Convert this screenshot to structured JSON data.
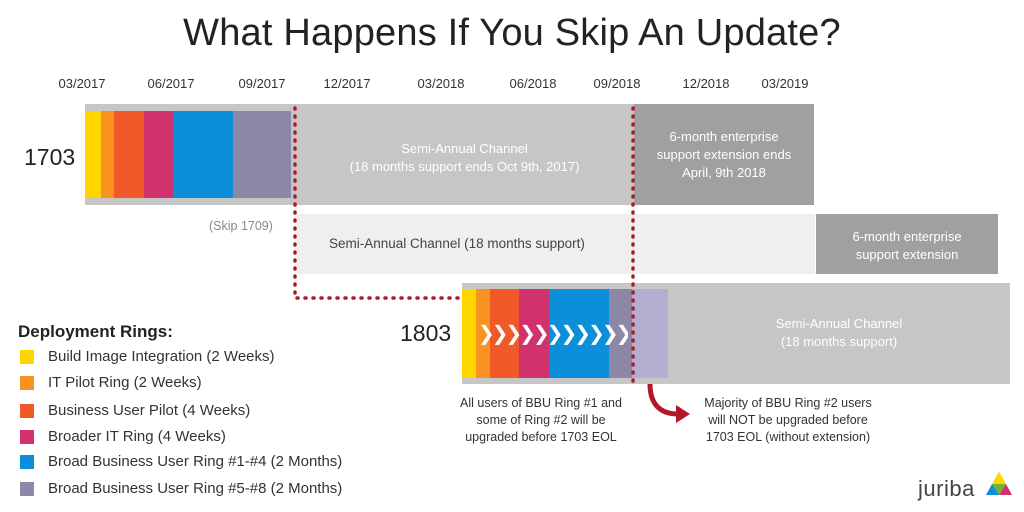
{
  "title": "What Happens If You Skip An Update?",
  "timeline": {
    "ticks": [
      "03/2017",
      "06/2017",
      "09/2017",
      "12/2017",
      "03/2018",
      "06/2018",
      "09/2018",
      "12/2018",
      "03/2019"
    ]
  },
  "releases": {
    "r1703": {
      "label": "1703",
      "sac_text": [
        "Semi-Annual Channel",
        "(18 months support ends Oct 9th, 2017)"
      ],
      "ext_text": [
        "6-month enterprise",
        "support extension ends",
        "April, 9th 2018"
      ]
    },
    "r1709": {
      "skip_label": "(Skip 1709)",
      "sac_text": "Semi-Annual Channel (18 months support)",
      "ext_text": [
        "6-month enterprise",
        "support extension"
      ]
    },
    "r1803": {
      "label": "1803",
      "sac_text": [
        "Semi-Annual Channel",
        "(18 months support)"
      ]
    }
  },
  "legend": {
    "title": "Deployment Rings:",
    "items": [
      {
        "label": "Build Image Integration (2 Weeks)",
        "color": "#FFD500"
      },
      {
        "label": "IT Pilot Ring (2 Weeks)",
        "color": "#F7931E"
      },
      {
        "label": "Business User Pilot (4 Weeks)",
        "color": "#F05A28"
      },
      {
        "label": "Broader IT Ring (4 Weeks)",
        "color": "#D0326E"
      },
      {
        "label": "Broad Business User Ring #1-#4 (2 Months)",
        "color": "#0B8FD9"
      },
      {
        "label": "Broad Business User Ring #5-#8 (2 Months)",
        "color": "#8E88A8"
      }
    ]
  },
  "notes": {
    "left": [
      "All users of BBU Ring #1 and",
      "some of Ring #2 will be",
      "upgraded  before  1703 EOL"
    ],
    "right": [
      "Majority of BBU Ring #2 users",
      "will NOT be upgraded before",
      "1703 EOL (without extension)"
    ]
  },
  "colors": {
    "sac_grey": "#C6C6C6",
    "ext_grey": "#A0A0A0",
    "light_grey": "#EFEFEF",
    "dotted_red": "#B0192A",
    "light_purple": "#B3AECF"
  },
  "logo": {
    "text": "juriba"
  }
}
